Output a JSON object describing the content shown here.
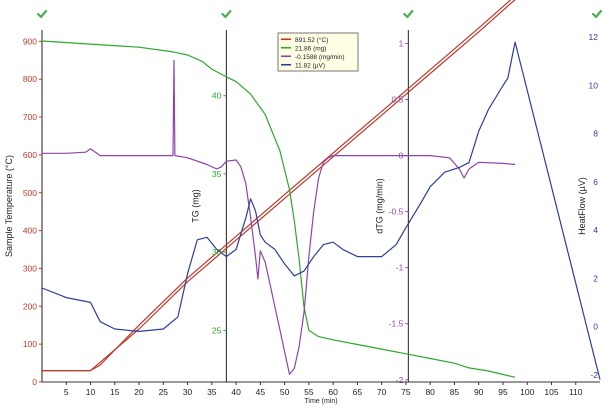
{
  "chart_data": {
    "type": "line",
    "xlabel": "Time (min)",
    "xlim": [
      0,
      115
    ],
    "x_ticks": [
      "5",
      "10",
      "15",
      "20",
      "25",
      "30",
      "35",
      "40",
      "45",
      "50",
      "55",
      "60",
      "65",
      "70",
      "75",
      "80",
      "85",
      "90",
      "95",
      "100",
      "105",
      "110"
    ],
    "grid": false,
    "axes": [
      {
        "id": "temp",
        "label": "Sample Temperature (°C)",
        "ylim": [
          0,
          930
        ],
        "ticks": [
          "0",
          "100",
          "200",
          "300",
          "400",
          "500",
          "600",
          "700",
          "800",
          "900"
        ],
        "color": "#c0392b"
      },
      {
        "id": "tg",
        "label": "TG (mg)",
        "ylim": [
          21.7,
          44.2
        ],
        "ticks": [
          "25",
          "30",
          "35",
          "40"
        ],
        "color": "#2ea82e"
      },
      {
        "id": "dtg",
        "label": "dTG (mg/min)",
        "ylim": [
          -2.02,
          1.12
        ],
        "ticks": [
          "-2",
          "-1.5",
          "-1",
          "-0.5",
          "0",
          "0.5",
          "1"
        ],
        "color": "#8e44ad"
      },
      {
        "id": "hf",
        "label": "HeatFlow (µV)",
        "ylim": [
          -2.3,
          12.3
        ],
        "ticks": [
          "-2",
          "0",
          "2",
          "4",
          "6",
          "8",
          "10",
          "12"
        ],
        "color": "#2c3e9e"
      }
    ],
    "legend_position": "top-center",
    "legend": [
      {
        "text": "891.52 (°C)",
        "color": "#c0392b"
      },
      {
        "text": "21.86 (mg)",
        "color": "#2ea82e"
      },
      {
        "text": "-0.1588 (mg/min)",
        "color": "#8e44ad"
      },
      {
        "text": "11.82 (µV)",
        "color": "#2c3e9e"
      }
    ],
    "markers_x": [
      0,
      38,
      75.5
    ],
    "series": [
      {
        "axis": "temp",
        "color": "#c0392b",
        "points": [
          [
            0,
            30
          ],
          [
            10,
            30
          ],
          [
            12,
            45
          ],
          [
            20,
            150
          ],
          [
            30,
            275
          ],
          [
            40,
            385
          ],
          [
            50,
            495
          ],
          [
            60,
            605
          ],
          [
            70,
            715
          ],
          [
            80,
            825
          ],
          [
            90,
            935
          ],
          [
            97.5,
            1020
          ]
        ]
      },
      {
        "axis": "temp",
        "color": "#c0392b",
        "points": [
          [
            0,
            30
          ],
          [
            10,
            30
          ],
          [
            20,
            140
          ],
          [
            30,
            265
          ],
          [
            40,
            375
          ],
          [
            50,
            485
          ],
          [
            60,
            595
          ],
          [
            70,
            705
          ],
          [
            80,
            815
          ],
          [
            90,
            925
          ],
          [
            97.5,
            1010
          ]
        ]
      },
      {
        "axis": "tg",
        "color": "#2ea82e",
        "points": [
          [
            0,
            43.5
          ],
          [
            10,
            43.3
          ],
          [
            20,
            43.1
          ],
          [
            27,
            42.8
          ],
          [
            30,
            42.6
          ],
          [
            33,
            42.2
          ],
          [
            35,
            41.7
          ],
          [
            38,
            41.2
          ],
          [
            40,
            40.9
          ],
          [
            43,
            40.1
          ],
          [
            46,
            38.8
          ],
          [
            49,
            36.5
          ],
          [
            51,
            34.0
          ],
          [
            52,
            32.0
          ],
          [
            53,
            29.5
          ],
          [
            54,
            26.5
          ],
          [
            55,
            25.0
          ],
          [
            57,
            24.6
          ],
          [
            60,
            24.4
          ],
          [
            65,
            24.1
          ],
          [
            70,
            23.8
          ],
          [
            75,
            23.5
          ],
          [
            80,
            23.2
          ],
          [
            85,
            22.9
          ],
          [
            88,
            22.6
          ],
          [
            92,
            22.4
          ],
          [
            97.5,
            22.0
          ]
        ]
      },
      {
        "axis": "dtg",
        "color": "#8e44ad",
        "points": [
          [
            0,
            0.02
          ],
          [
            5,
            0.02
          ],
          [
            9,
            0.03
          ],
          [
            10,
            0.06
          ],
          [
            11,
            0.03
          ],
          [
            12,
            0
          ],
          [
            20,
            0
          ],
          [
            27,
            0.0
          ],
          [
            27.2,
            0.85
          ],
          [
            27.4,
            0.0
          ],
          [
            30,
            -0.02
          ],
          [
            34,
            -0.08
          ],
          [
            36,
            -0.12
          ],
          [
            37,
            -0.1
          ],
          [
            38,
            -0.05
          ],
          [
            40,
            -0.04
          ],
          [
            41,
            -0.1
          ],
          [
            42,
            -0.25
          ],
          [
            43,
            -0.55
          ],
          [
            44,
            -0.9
          ],
          [
            44.5,
            -1.1
          ],
          [
            45,
            -0.85
          ],
          [
            46,
            -0.95
          ],
          [
            47,
            -1.15
          ],
          [
            48,
            -1.35
          ],
          [
            49,
            -1.55
          ],
          [
            50,
            -1.75
          ],
          [
            51,
            -1.95
          ],
          [
            52,
            -1.9
          ],
          [
            53,
            -1.7
          ],
          [
            54,
            -1.4
          ],
          [
            55,
            -0.9
          ],
          [
            56,
            -0.5
          ],
          [
            57,
            -0.2
          ],
          [
            58,
            -0.06
          ],
          [
            59,
            -0.02
          ],
          [
            60,
            0
          ],
          [
            70,
            0
          ],
          [
            75,
            0
          ],
          [
            80,
            0
          ],
          [
            84,
            -0.02
          ],
          [
            86,
            -0.12
          ],
          [
            87,
            -0.2
          ],
          [
            88,
            -0.12
          ],
          [
            90,
            -0.06
          ],
          [
            95,
            -0.07
          ],
          [
            97.5,
            -0.08
          ]
        ]
      },
      {
        "axis": "hf",
        "color": "#2c3e9e",
        "points": [
          [
            0,
            1.6
          ],
          [
            5,
            1.2
          ],
          [
            10,
            1.0
          ],
          [
            12,
            0.2
          ],
          [
            15,
            -0.1
          ],
          [
            20,
            -0.2
          ],
          [
            25,
            -0.1
          ],
          [
            28,
            0.4
          ],
          [
            30,
            2.2
          ],
          [
            32,
            3.6
          ],
          [
            34,
            3.7
          ],
          [
            36,
            3.2
          ],
          [
            38,
            2.9
          ],
          [
            40,
            3.2
          ],
          [
            42,
            4.5
          ],
          [
            43,
            5.3
          ],
          [
            44,
            4.8
          ],
          [
            45,
            3.8
          ],
          [
            46,
            3.5
          ],
          [
            48,
            3.2
          ],
          [
            50,
            2.6
          ],
          [
            52,
            2.1
          ],
          [
            54,
            2.3
          ],
          [
            56,
            2.9
          ],
          [
            58,
            3.4
          ],
          [
            60,
            3.5
          ],
          [
            62,
            3.2
          ],
          [
            65,
            2.9
          ],
          [
            70,
            2.9
          ],
          [
            73,
            3.4
          ],
          [
            75,
            4.1
          ],
          [
            78,
            5.1
          ],
          [
            80,
            5.8
          ],
          [
            83,
            6.4
          ],
          [
            86,
            6.6
          ],
          [
            88,
            6.8
          ],
          [
            90,
            8.1
          ],
          [
            92,
            9.0
          ],
          [
            95,
            10.0
          ],
          [
            96,
            10.3
          ],
          [
            97.5,
            11.8
          ],
          [
            115,
            -2.2
          ]
        ]
      }
    ]
  }
}
